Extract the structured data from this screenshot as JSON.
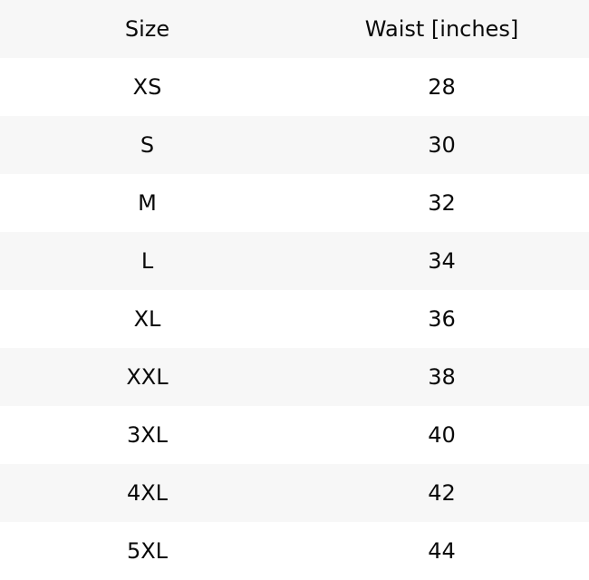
{
  "table": {
    "title": "size-chart-table",
    "columns": {
      "size_label": "Size",
      "waist_label": "Waist [inches]"
    },
    "rows": [
      {
        "size": "XS",
        "waist": "28"
      },
      {
        "size": "S",
        "waist": "30"
      },
      {
        "size": "M",
        "waist": "32"
      },
      {
        "size": "L",
        "waist": "34"
      },
      {
        "size": "XL",
        "waist": "36"
      },
      {
        "size": "XXL",
        "waist": "38"
      },
      {
        "size": "3XL",
        "waist": "40"
      },
      {
        "size": "4XL",
        "waist": "42"
      },
      {
        "size": "5XL",
        "waist": "44"
      }
    ],
    "colors": {
      "row_alt_background": "#f7f7f7",
      "row_background": "#ffffff",
      "text": "#0a0a0a"
    }
  }
}
